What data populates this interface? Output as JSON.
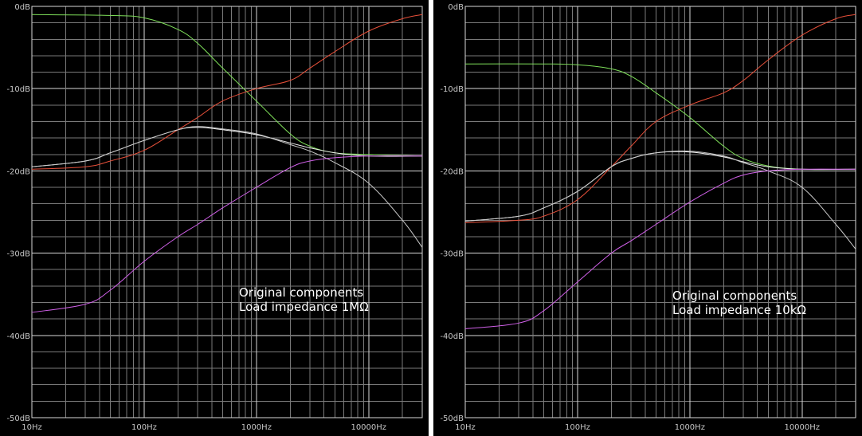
{
  "chart_data": [
    {
      "type": "line",
      "title": "",
      "xlabel": "",
      "ylabel": "",
      "x_scale": "log",
      "xlim": [
        10,
        30000
      ],
      "ylim": [
        -50,
        0
      ],
      "grid": true,
      "x_tick_labels": [
        {
          "value": 10,
          "label": "10Hz"
        },
        {
          "value": 100,
          "label": "100Hz"
        },
        {
          "value": 1000,
          "label": "1000Hz"
        },
        {
          "value": 10000,
          "label": "10000Hz"
        }
      ],
      "y_tick_labels": [
        {
          "value": 0,
          "label": "0dB"
        },
        {
          "value": -10,
          "label": "-10dB"
        },
        {
          "value": -20,
          "label": "-20dB"
        },
        {
          "value": -30,
          "label": "-30dB"
        },
        {
          "value": -40,
          "label": "-40dB"
        },
        {
          "value": -50,
          "label": "-50dB"
        }
      ],
      "annotation": [
        "Original components",
        "Load impedance 1MΩ"
      ],
      "series": [
        {
          "color": "#7fe05a",
          "points": [
            [
              10,
              -1.0
            ],
            [
              50,
              -1.1
            ],
            [
              100,
              -1.4
            ],
            [
              200,
              -2.8
            ],
            [
              300,
              -4.5
            ],
            [
              500,
              -7.5
            ],
            [
              1000,
              -11.5
            ],
            [
              2000,
              -15.5
            ],
            [
              3000,
              -17.0
            ],
            [
              5000,
              -17.8
            ],
            [
              10000,
              -18.0
            ],
            [
              30000,
              -18.2
            ]
          ]
        },
        {
          "color": "#e8503a",
          "points": [
            [
              10,
              -19.8
            ],
            [
              30,
              -19.5
            ],
            [
              50,
              -18.8
            ],
            [
              100,
              -17.5
            ],
            [
              200,
              -15.0
            ],
            [
              300,
              -13.5
            ],
            [
              500,
              -11.5
            ],
            [
              1000,
              -10.0
            ],
            [
              2000,
              -9.0
            ],
            [
              3000,
              -7.5
            ],
            [
              5000,
              -5.5
            ],
            [
              10000,
              -3.0
            ],
            [
              20000,
              -1.5
            ],
            [
              30000,
              -1.0
            ]
          ]
        },
        {
          "color": "#f0f0f0",
          "points": [
            [
              10,
              -19.5
            ],
            [
              30,
              -18.8
            ],
            [
              50,
              -17.8
            ],
            [
              100,
              -16.3
            ],
            [
              200,
              -15.0
            ],
            [
              300,
              -14.7
            ],
            [
              500,
              -15.0
            ],
            [
              1000,
              -15.6
            ],
            [
              2000,
              -16.6
            ],
            [
              3000,
              -17.2
            ],
            [
              5000,
              -17.8
            ],
            [
              10000,
              -18.2
            ],
            [
              30000,
              -18.2
            ]
          ]
        },
        {
          "color": "#c8c8c8",
          "points": [
            [
              10,
              -19.5
            ],
            [
              30,
              -18.8
            ],
            [
              50,
              -17.8
            ],
            [
              100,
              -16.3
            ],
            [
              200,
              -15.0
            ],
            [
              300,
              -14.6
            ],
            [
              500,
              -14.9
            ],
            [
              1000,
              -15.5
            ],
            [
              2000,
              -16.8
            ],
            [
              3000,
              -17.6
            ],
            [
              5000,
              -19.0
            ],
            [
              10000,
              -21.5
            ],
            [
              20000,
              -26.0
            ],
            [
              30000,
              -29.3
            ]
          ]
        },
        {
          "color": "#d060e8",
          "points": [
            [
              10,
              -37.2
            ],
            [
              30,
              -36.2
            ],
            [
              50,
              -34.5
            ],
            [
              100,
              -31.0
            ],
            [
              200,
              -28.0
            ],
            [
              300,
              -26.5
            ],
            [
              500,
              -24.5
            ],
            [
              1000,
              -22.0
            ],
            [
              2000,
              -19.6
            ],
            [
              3000,
              -18.8
            ],
            [
              5000,
              -18.4
            ],
            [
              10000,
              -18.2
            ],
            [
              30000,
              -18.2
            ]
          ]
        }
      ]
    },
    {
      "type": "line",
      "title": "",
      "xlabel": "",
      "ylabel": "",
      "x_scale": "log",
      "xlim": [
        10,
        30000
      ],
      "ylim": [
        -50,
        0
      ],
      "grid": true,
      "x_tick_labels": [
        {
          "value": 10,
          "label": "10Hz"
        },
        {
          "value": 100,
          "label": "100Hz"
        },
        {
          "value": 1000,
          "label": "1000Hz"
        },
        {
          "value": 10000,
          "label": "10000Hz"
        }
      ],
      "y_tick_labels": [
        {
          "value": 0,
          "label": "0dB"
        },
        {
          "value": -10,
          "label": "-10dB"
        },
        {
          "value": -20,
          "label": "-20dB"
        },
        {
          "value": -30,
          "label": "-30dB"
        },
        {
          "value": -40,
          "label": "-40dB"
        },
        {
          "value": -50,
          "label": "-50dB"
        }
      ],
      "annotation": [
        "Original components",
        "Load impedance 10kΩ"
      ],
      "series": [
        {
          "color": "#7fe05a",
          "points": [
            [
              10,
              -7.0
            ],
            [
              50,
              -7.0
            ],
            [
              100,
              -7.1
            ],
            [
              200,
              -7.6
            ],
            [
              300,
              -8.5
            ],
            [
              500,
              -10.5
            ],
            [
              1000,
              -13.5
            ],
            [
              2000,
              -17.0
            ],
            [
              3000,
              -18.5
            ],
            [
              5000,
              -19.4
            ],
            [
              10000,
              -19.8
            ],
            [
              30000,
              -19.8
            ]
          ]
        },
        {
          "color": "#e8503a",
          "points": [
            [
              10,
              -26.3
            ],
            [
              30,
              -26.0
            ],
            [
              50,
              -25.5
            ],
            [
              100,
              -23.5
            ],
            [
              200,
              -19.5
            ],
            [
              300,
              -17.0
            ],
            [
              500,
              -14.0
            ],
            [
              1000,
              -12.0
            ],
            [
              2000,
              -10.5
            ],
            [
              3000,
              -9.0
            ],
            [
              5000,
              -6.5
            ],
            [
              10000,
              -3.5
            ],
            [
              20000,
              -1.5
            ],
            [
              30000,
              -1.0
            ]
          ]
        },
        {
          "color": "#f0f0f0",
          "points": [
            [
              10,
              -26.1
            ],
            [
              30,
              -25.5
            ],
            [
              50,
              -24.5
            ],
            [
              100,
              -22.5
            ],
            [
              200,
              -19.5
            ],
            [
              300,
              -18.5
            ],
            [
              500,
              -17.8
            ],
            [
              1000,
              -17.7
            ],
            [
              2000,
              -18.3
            ],
            [
              3000,
              -18.9
            ],
            [
              5000,
              -19.5
            ],
            [
              10000,
              -19.8
            ],
            [
              30000,
              -19.8
            ]
          ]
        },
        {
          "color": "#c8c8c8",
          "points": [
            [
              10,
              -26.1
            ],
            [
              30,
              -25.5
            ],
            [
              50,
              -24.5
            ],
            [
              100,
              -22.5
            ],
            [
              200,
              -19.5
            ],
            [
              300,
              -18.5
            ],
            [
              500,
              -17.8
            ],
            [
              1000,
              -17.6
            ],
            [
              2000,
              -18.2
            ],
            [
              3000,
              -19.0
            ],
            [
              5000,
              -20.0
            ],
            [
              10000,
              -22.0
            ],
            [
              20000,
              -26.5
            ],
            [
              30000,
              -29.5
            ]
          ]
        },
        {
          "color": "#d060e8",
          "points": [
            [
              10,
              -39.2
            ],
            [
              30,
              -38.5
            ],
            [
              50,
              -37.0
            ],
            [
              100,
              -33.5
            ],
            [
              200,
              -30.0
            ],
            [
              300,
              -28.5
            ],
            [
              500,
              -26.5
            ],
            [
              1000,
              -23.8
            ],
            [
              2000,
              -21.5
            ],
            [
              3000,
              -20.5
            ],
            [
              5000,
              -20.0
            ],
            [
              10000,
              -19.8
            ],
            [
              30000,
              -19.8
            ]
          ]
        }
      ]
    }
  ]
}
